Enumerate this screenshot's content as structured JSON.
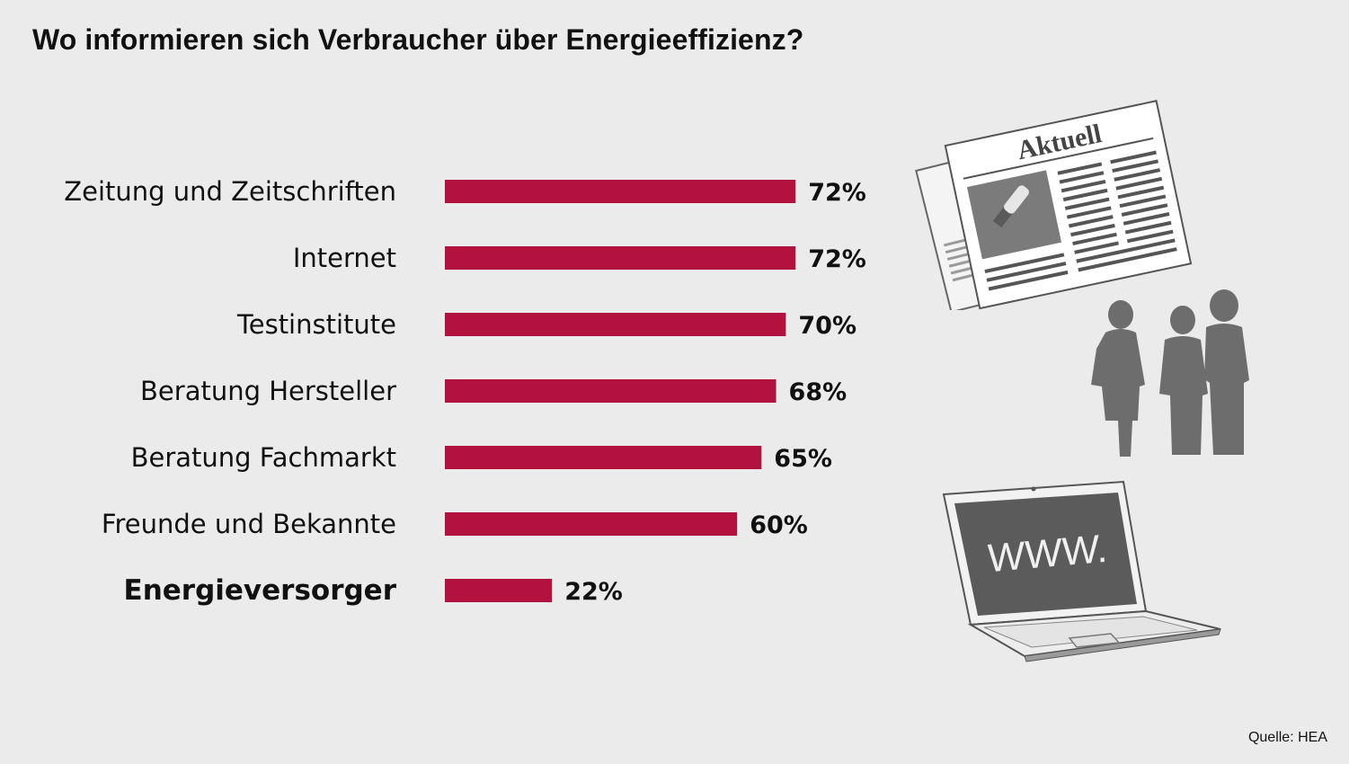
{
  "source": "Quelle: HEA",
  "illustrations": {
    "newspaper_icon": "newspaper-icon",
    "newspaper_heading": "Aktuell",
    "people_icon": "people-silhouettes-icon",
    "laptop_icon": "laptop-icon",
    "laptop_screen_text": "WWW."
  },
  "chart_data": {
    "type": "bar",
    "orientation": "horizontal",
    "title": "Wo informieren sich Verbraucher über Energieeffizienz?",
    "value_suffix": "%",
    "bar_color": "#b3123e",
    "categories": [
      "Zeitung und Zeitschriften",
      "Internet",
      "Testinstitute",
      "Beratung Hersteller",
      "Beratung Fachmarkt",
      "Freunde und Bekannte",
      "Energieversorger"
    ],
    "values": [
      72,
      72,
      70,
      68,
      65,
      60,
      22
    ],
    "highlight_category": "Energieversorger",
    "xlim": [
      0,
      100
    ],
    "grid": false,
    "legend": "none"
  }
}
